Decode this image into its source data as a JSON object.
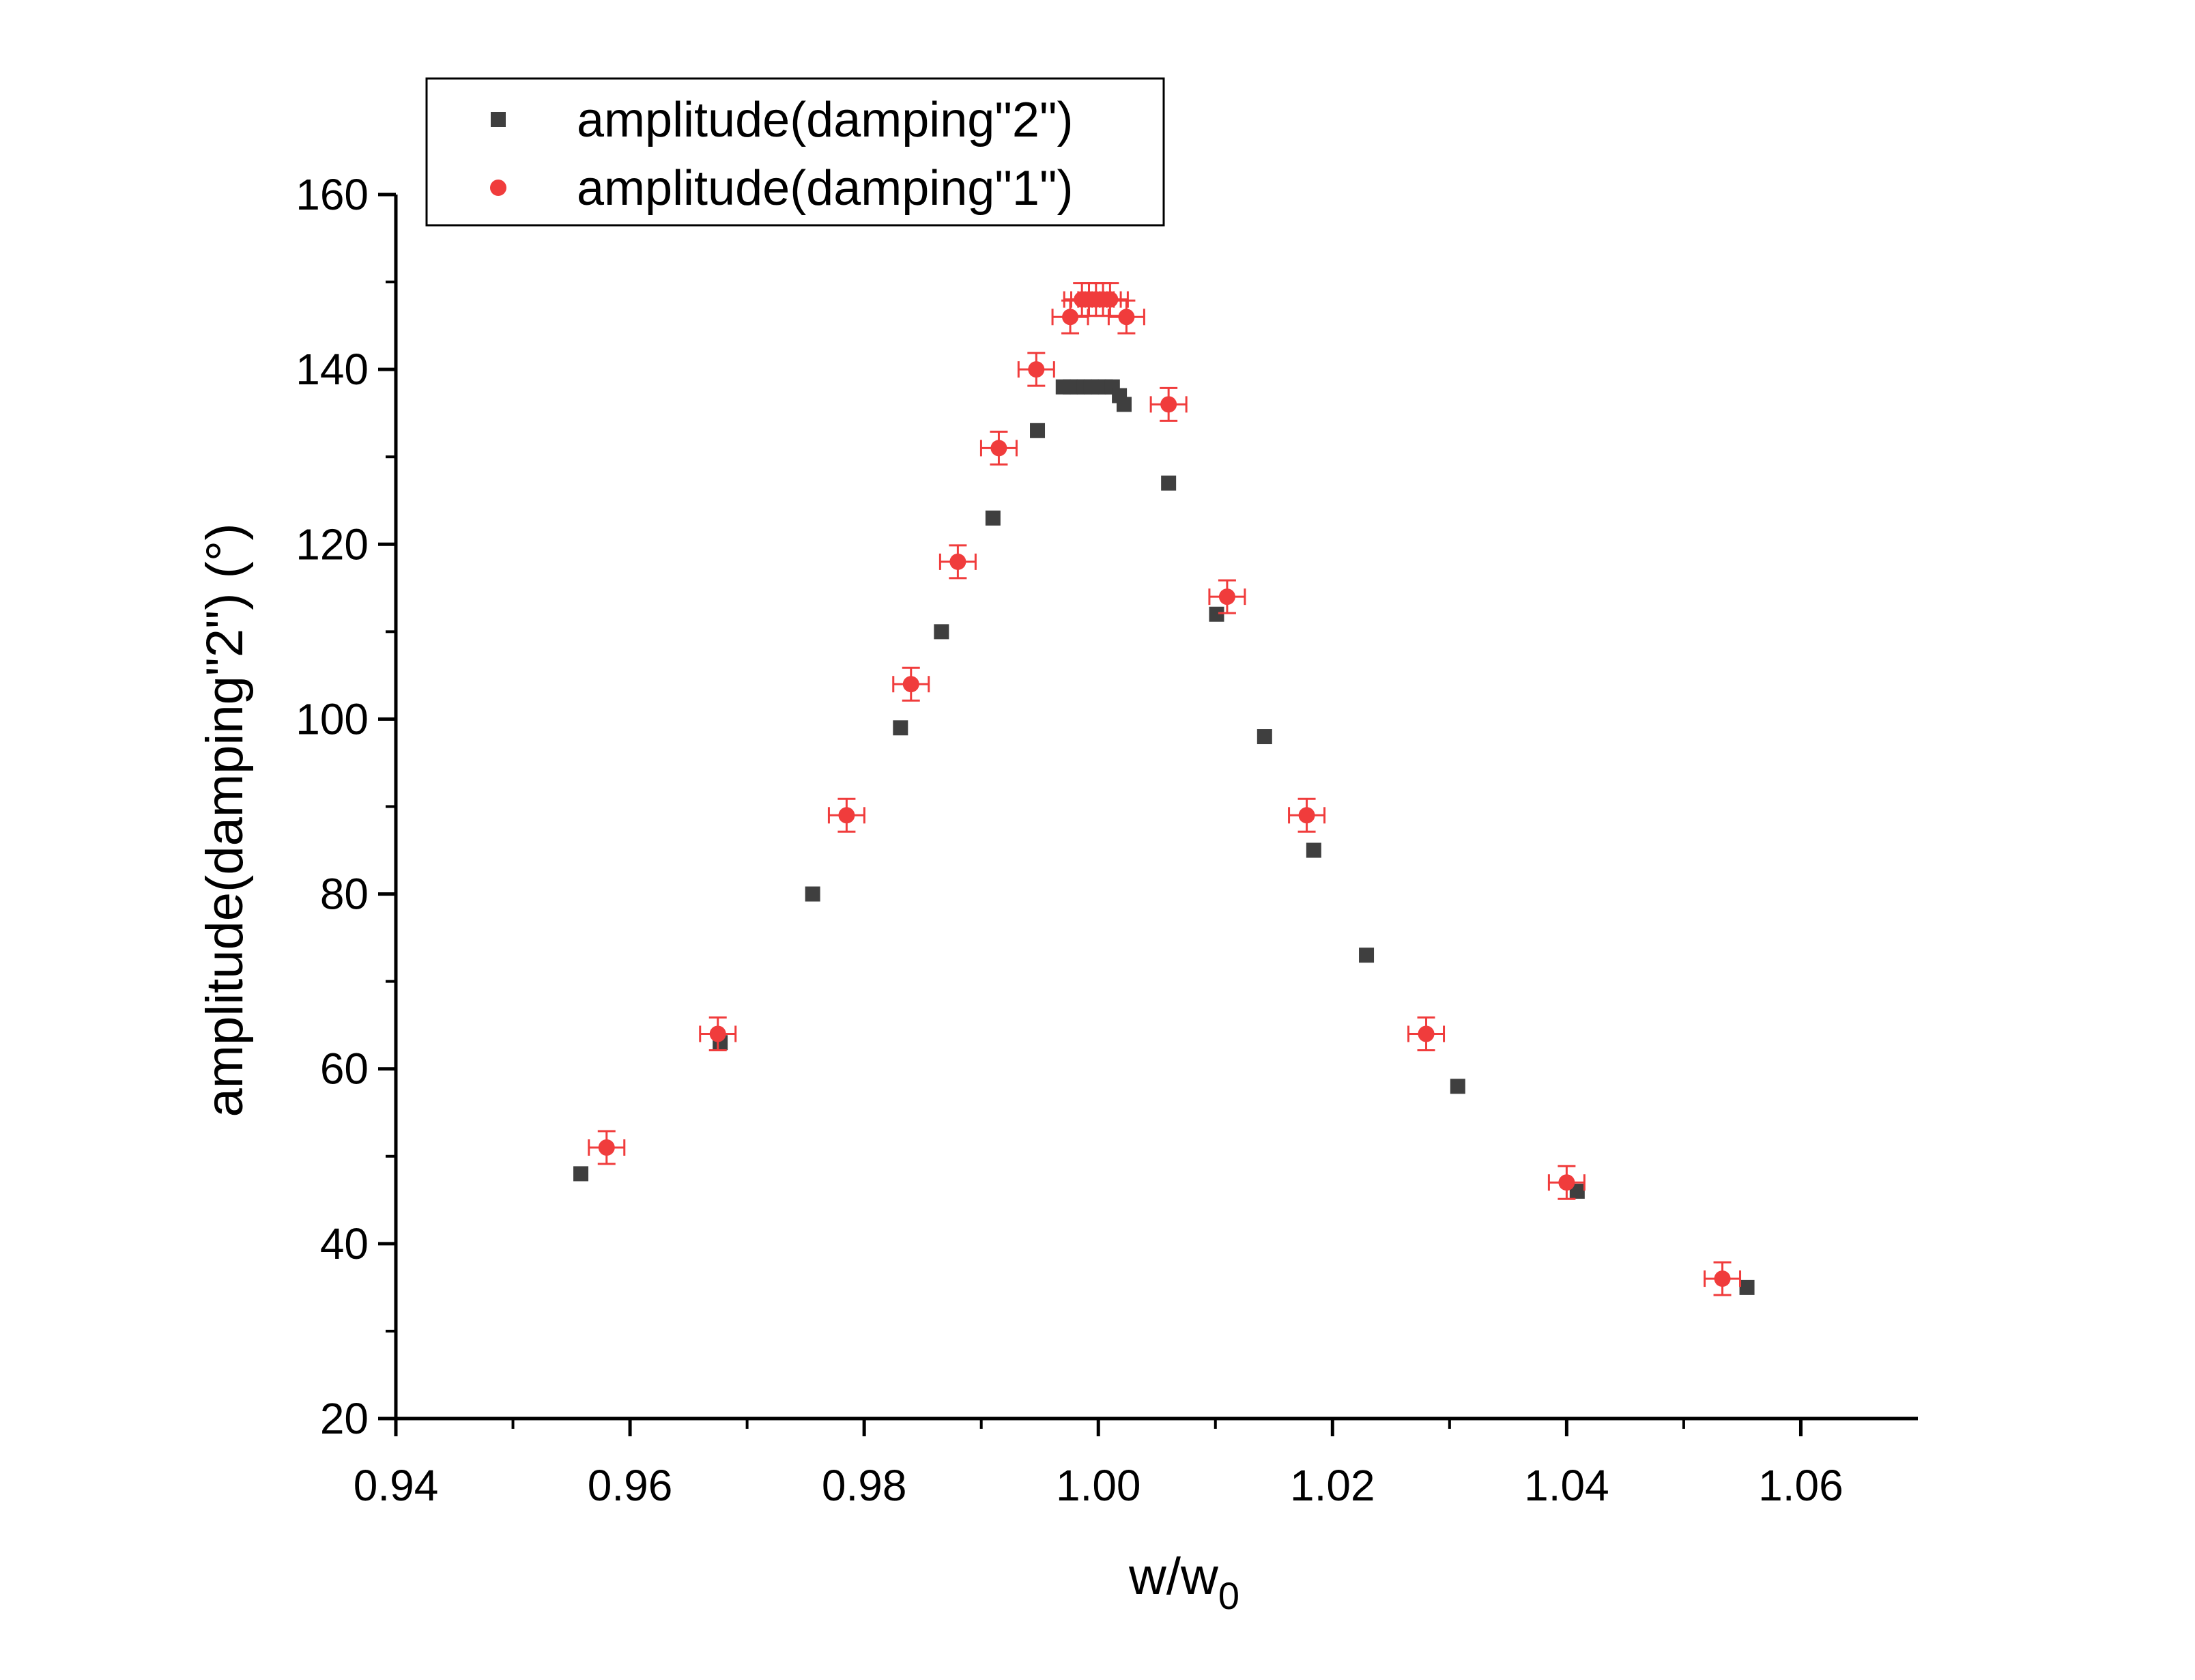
{
  "chart_data": {
    "type": "scatter",
    "xlabel": "w/w",
    "xlabel_sub": "0",
    "ylabel": "amplitude(damping\"2\") (°)",
    "xlim": [
      0.94,
      1.07
    ],
    "ylim": [
      20,
      160
    ],
    "x_ticks": [
      "0.94",
      "0.96",
      "0.98",
      "1.00",
      "1.02",
      "1.04",
      "1.06"
    ],
    "y_ticks": [
      "20",
      "40",
      "60",
      "80",
      "100",
      "120",
      "140",
      "160"
    ],
    "grid": false,
    "legend_position": "top-left",
    "series": [
      {
        "name": "amplitude(damping\"2\")",
        "marker": "square",
        "color": "#3f3f3f",
        "error_bars": false,
        "x": [
          0.9558,
          0.9677,
          0.9756,
          0.9831,
          0.9866,
          0.991,
          0.9948,
          0.997,
          0.9976,
          0.9982,
          0.9988,
          0.9994,
          1.0,
          1.0006,
          1.0012,
          1.0018,
          1.0022,
          1.006,
          1.0101,
          1.0142,
          1.0184,
          1.0229,
          1.0307,
          1.0409,
          1.0554
        ],
        "y": [
          48,
          63,
          80,
          99,
          110,
          123,
          133,
          138,
          138,
          138,
          138,
          138,
          138,
          138,
          138,
          137,
          136,
          127,
          112,
          98,
          85,
          73,
          58,
          46,
          35
        ]
      },
      {
        "name": "amplitude(damping\"1\")",
        "marker": "circle",
        "color": "#f03c3c",
        "error_bars": true,
        "x": [
          0.958,
          0.9675,
          0.9785,
          0.984,
          0.988,
          0.9915,
          0.9947,
          0.9976,
          0.9986,
          0.9992,
          0.9998,
          1.0004,
          1.001,
          1.0024,
          1.006,
          1.011,
          1.0178,
          1.028,
          1.04,
          1.0533
        ],
        "y": [
          51,
          64,
          89,
          104,
          118,
          131,
          140,
          146,
          148,
          148,
          148,
          148,
          148,
          146,
          136,
          114,
          89,
          64,
          47,
          36
        ]
      }
    ]
  }
}
